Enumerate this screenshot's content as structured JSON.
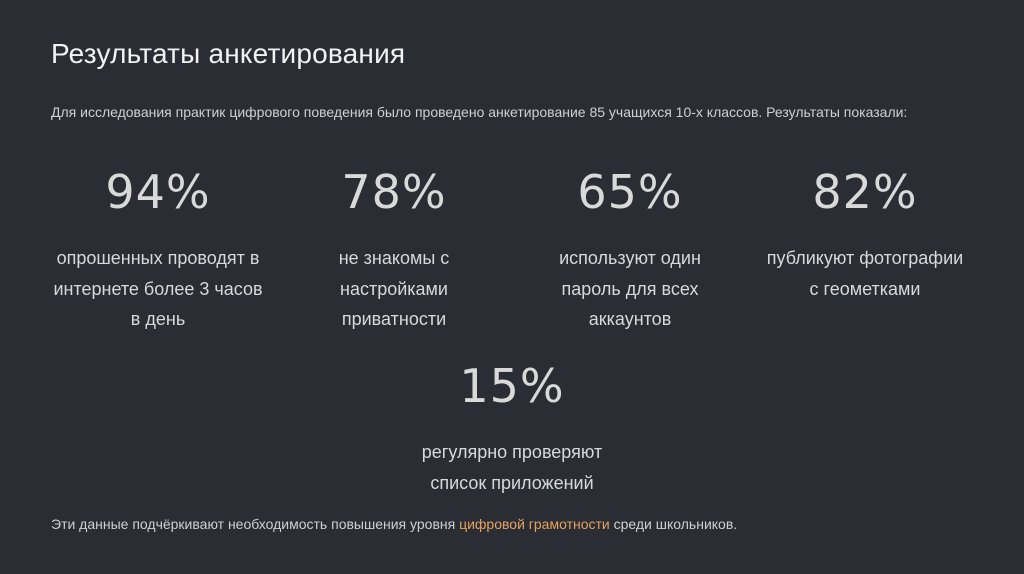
{
  "title": "Результаты анкетирования",
  "intro": "Для исследования практик цифрового поведения было проведено анкетирование 85 учащихся 10-х классов. Результаты показали:",
  "stats": [
    {
      "value": "94%",
      "lines": [
        "опрошенных проводят в",
        "интернете более 3 часов",
        "в день"
      ]
    },
    {
      "value": "78%",
      "lines": [
        "не знакомы с",
        "настройками",
        "приватности"
      ]
    },
    {
      "value": "65%",
      "lines": [
        "используют один",
        "пароль для всех",
        "аккаунтов"
      ]
    },
    {
      "value": "82%",
      "lines": [
        "публикуют фотографии",
        "с геометками"
      ]
    },
    {
      "value": "15%",
      "lines": [
        "регулярно проверяют",
        "список приложений"
      ]
    }
  ],
  "outro": {
    "before": "Эти данные подчёркивают необходимость повышения уровня ",
    "highlight": "цифровой грамотности",
    "after": " среди школьников."
  },
  "colors": {
    "background": "#2a2d34",
    "accent": "#e6a15f"
  }
}
